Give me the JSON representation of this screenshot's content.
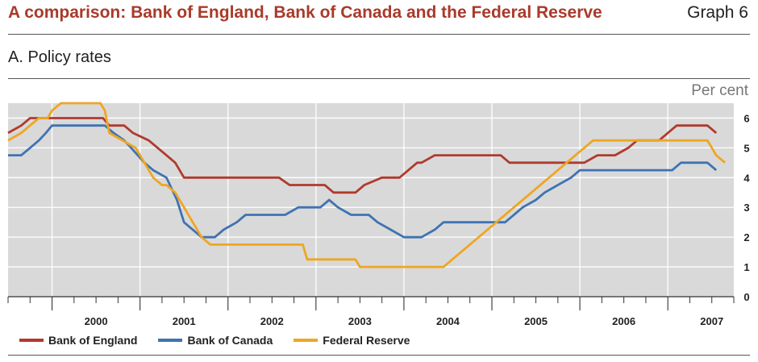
{
  "header": {
    "title": "A comparison: Bank of England, Bank of Canada and the Federal Reserve",
    "graph_label": "Graph 6"
  },
  "panel": {
    "subtitle": "A. Policy rates",
    "unit": "Per cent"
  },
  "colors": {
    "boe": "#b03a2e",
    "boc": "#3e73b2",
    "fed": "#eea623",
    "plot_bg": "#d9d9d9",
    "grid": "#ffffff"
  },
  "chart_data": {
    "type": "line",
    "title": "",
    "xlabel": "",
    "ylabel": "Per cent",
    "xlim": [
      1999.5,
      2007.75
    ],
    "ylim": [
      0,
      6.5
    ],
    "grid": true,
    "legend_position": "bottom",
    "x_ticks": [
      "2000",
      "2001",
      "2002",
      "2003",
      "2004",
      "2005",
      "2006",
      "2007"
    ],
    "y_ticks": [
      "0",
      "1",
      "2",
      "3",
      "4",
      "5",
      "6"
    ],
    "series": [
      {
        "name": "Bank of England",
        "color": "#b03a2e",
        "points": [
          [
            1999.5,
            5.5
          ],
          [
            1999.65,
            5.75
          ],
          [
            1999.75,
            6.0
          ],
          [
            2000.58,
            6.0
          ],
          [
            2000.65,
            5.75
          ],
          [
            2000.82,
            5.75
          ],
          [
            2000.92,
            5.5
          ],
          [
            2001.1,
            5.25
          ],
          [
            2001.3,
            4.75
          ],
          [
            2001.4,
            4.5
          ],
          [
            2001.5,
            4.0
          ],
          [
            2002.58,
            4.0
          ],
          [
            2002.7,
            3.75
          ],
          [
            2003.1,
            3.75
          ],
          [
            2003.2,
            3.5
          ],
          [
            2003.45,
            3.5
          ],
          [
            2003.55,
            3.75
          ],
          [
            2003.75,
            4.0
          ],
          [
            2003.95,
            4.0
          ],
          [
            2004.05,
            4.25
          ],
          [
            2004.15,
            4.5
          ],
          [
            2004.2,
            4.5
          ],
          [
            2004.35,
            4.75
          ],
          [
            2005.1,
            4.75
          ],
          [
            2005.2,
            4.5
          ],
          [
            2005.95,
            4.5
          ],
          [
            2006.05,
            4.5
          ],
          [
            2006.2,
            4.75
          ],
          [
            2006.4,
            4.75
          ],
          [
            2006.55,
            5.0
          ],
          [
            2006.65,
            5.25
          ],
          [
            2006.9,
            5.25
          ],
          [
            2007.0,
            5.5
          ],
          [
            2007.1,
            5.75
          ],
          [
            2007.45,
            5.75
          ],
          [
            2007.55,
            5.5
          ]
        ]
      },
      {
        "name": "Bank of Canada",
        "color": "#3e73b2",
        "points": [
          [
            1999.5,
            4.75
          ],
          [
            1999.65,
            4.75
          ],
          [
            1999.75,
            5.0
          ],
          [
            1999.85,
            5.25
          ],
          [
            1999.93,
            5.5
          ],
          [
            2000.0,
            5.75
          ],
          [
            2000.6,
            5.75
          ],
          [
            2000.7,
            5.5
          ],
          [
            2000.82,
            5.25
          ],
          [
            2000.9,
            5.0
          ],
          [
            2001.05,
            4.5
          ],
          [
            2001.15,
            4.25
          ],
          [
            2001.3,
            4.0
          ],
          [
            2001.42,
            3.25
          ],
          [
            2001.5,
            2.5
          ],
          [
            2001.6,
            2.25
          ],
          [
            2001.7,
            2.0
          ],
          [
            2001.85,
            2.0
          ],
          [
            2001.95,
            2.25
          ],
          [
            2002.1,
            2.5
          ],
          [
            2002.2,
            2.75
          ],
          [
            2002.65,
            2.75
          ],
          [
            2002.8,
            3.0
          ],
          [
            2003.05,
            3.0
          ],
          [
            2003.15,
            3.25
          ],
          [
            2003.25,
            3.0
          ],
          [
            2003.4,
            2.75
          ],
          [
            2003.6,
            2.75
          ],
          [
            2003.7,
            2.5
          ],
          [
            2003.85,
            2.25
          ],
          [
            2004.0,
            2.0
          ],
          [
            2004.2,
            2.0
          ],
          [
            2004.35,
            2.25
          ],
          [
            2004.45,
            2.5
          ],
          [
            2005.15,
            2.5
          ],
          [
            2005.25,
            2.75
          ],
          [
            2005.35,
            3.0
          ],
          [
            2005.5,
            3.25
          ],
          [
            2005.6,
            3.5
          ],
          [
            2005.75,
            3.75
          ],
          [
            2005.9,
            4.0
          ],
          [
            2006.0,
            4.25
          ],
          [
            2006.1,
            4.25
          ],
          [
            2007.05,
            4.25
          ],
          [
            2007.15,
            4.5
          ],
          [
            2007.45,
            4.5
          ],
          [
            2007.55,
            4.25
          ]
        ]
      },
      {
        "name": "Federal Reserve",
        "color": "#eea623",
        "points": [
          [
            1999.5,
            5.25
          ],
          [
            1999.65,
            5.5
          ],
          [
            1999.75,
            5.75
          ],
          [
            1999.85,
            6.0
          ],
          [
            1999.95,
            6.0
          ],
          [
            2000.0,
            6.25
          ],
          [
            2000.1,
            6.5
          ],
          [
            2000.55,
            6.5
          ],
          [
            2000.6,
            6.25
          ],
          [
            2000.65,
            5.5
          ],
          [
            2000.95,
            5.0
          ],
          [
            2001.05,
            4.5
          ],
          [
            2001.15,
            4.0
          ],
          [
            2001.25,
            3.75
          ],
          [
            2001.3,
            3.75
          ],
          [
            2001.4,
            3.5
          ],
          [
            2001.5,
            3.0
          ],
          [
            2001.6,
            2.5
          ],
          [
            2001.7,
            2.0
          ],
          [
            2001.8,
            1.75
          ],
          [
            2002.35,
            1.75
          ],
          [
            2002.85,
            1.75
          ],
          [
            2002.9,
            1.25
          ],
          [
            2003.45,
            1.25
          ],
          [
            2003.5,
            1.0
          ],
          [
            2004.45,
            1.0
          ],
          [
            2004.55,
            1.25
          ],
          [
            2004.65,
            1.5
          ],
          [
            2004.75,
            1.75
          ],
          [
            2004.85,
            2.0
          ],
          [
            2004.95,
            2.25
          ],
          [
            2005.05,
            2.5
          ],
          [
            2005.15,
            2.75
          ],
          [
            2005.25,
            3.0
          ],
          [
            2005.35,
            3.25
          ],
          [
            2005.45,
            3.5
          ],
          [
            2005.55,
            3.75
          ],
          [
            2005.65,
            4.0
          ],
          [
            2005.75,
            4.25
          ],
          [
            2005.85,
            4.5
          ],
          [
            2005.95,
            4.75
          ],
          [
            2006.05,
            5.0
          ],
          [
            2006.15,
            5.25
          ],
          [
            2006.45,
            5.25
          ],
          [
            2007.1,
            5.25
          ],
          [
            2007.2,
            5.25
          ],
          [
            2007.45,
            5.25
          ],
          [
            2007.55,
            4.75
          ],
          [
            2007.65,
            4.5
          ]
        ]
      }
    ]
  }
}
